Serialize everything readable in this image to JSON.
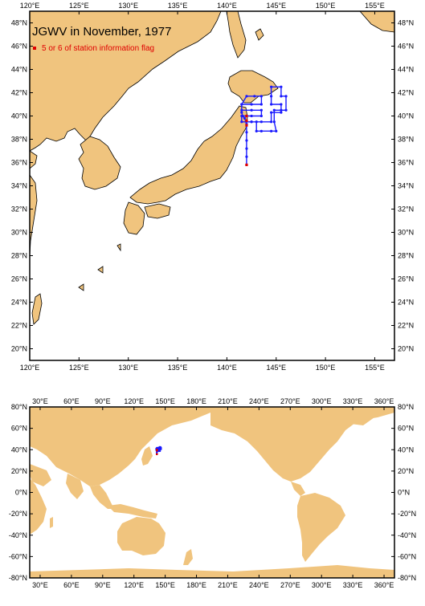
{
  "colors": {
    "land": "#f0c47e",
    "sea": "#ffffff",
    "track": "#1a1aff",
    "flag": "#e00000",
    "frame": "#000000"
  },
  "regional_map": {
    "title": "JGWV in November, 1977",
    "legend_label": "5 or 6 of station information flag",
    "lon_labels": [
      "120°E",
      "125°E",
      "130°E",
      "135°E",
      "140°E",
      "145°E",
      "150°E",
      "155°E"
    ],
    "lat_labels": [
      "20°N",
      "22°N",
      "24°N",
      "26°N",
      "28°N",
      "30°N",
      "32°N",
      "34°N",
      "36°N",
      "38°N",
      "40°N",
      "42°N",
      "44°N",
      "46°N",
      "48°N"
    ],
    "lon_range": [
      120,
      157
    ],
    "lat_range": [
      19,
      49
    ]
  },
  "world_map": {
    "lon_labels": [
      "30°E",
      "60°E",
      "90°E",
      "120°E",
      "150°E",
      "180°E",
      "210°E",
      "240°E",
      "270°E",
      "300°E",
      "330°E",
      "360°E"
    ],
    "lat_labels": [
      "-80°N",
      "-60°N",
      "-40°N",
      "-20°N",
      "0°N",
      "20°N",
      "40°N",
      "60°N",
      "80°N"
    ],
    "lon_range": [
      20,
      370
    ],
    "lat_range": [
      -80,
      80
    ]
  },
  "chart_data": {
    "type": "scatter",
    "series": [
      {
        "name": "",
        "x": [
          142.0,
          142.0,
          142.0,
          142.0,
          142.0,
          142.0,
          141.8,
          141.6,
          141.5,
          141.5,
          142.0,
          142.8,
          143.5,
          143.5,
          142.5,
          141.5,
          141.5,
          142.5,
          143.5,
          143.5,
          142.5,
          141.5,
          141.5,
          142.5,
          143.5,
          144.5,
          144.5,
          145.5,
          145.5,
          144.5,
          144.5,
          144.5,
          145.5,
          145.5,
          146.0,
          146.0,
          145.5,
          144.8,
          144.8,
          145.0,
          144.5,
          143.5,
          143.0,
          143.0,
          142.5
        ],
        "y": [
          35.8,
          36.5,
          37.2,
          37.9,
          38.6,
          39.3,
          39.8,
          40.0,
          40.3,
          41.0,
          41.7,
          41.7,
          41.7,
          41.0,
          41.0,
          41.0,
          40.5,
          40.5,
          40.5,
          40.0,
          40.0,
          40.0,
          39.5,
          39.5,
          39.5,
          39.5,
          40.3,
          40.3,
          41.0,
          41.0,
          41.7,
          42.5,
          42.5,
          41.7,
          41.7,
          40.5,
          40.5,
          40.5,
          39.5,
          38.7,
          38.7,
          38.7,
          38.7,
          39.5,
          39.5
        ]
      },
      {
        "name": "5 or 6 of station information flag",
        "x": [
          142.0,
          142.0,
          142.0,
          142.0
        ],
        "y": [
          35.8,
          39.2,
          39.6,
          40.0
        ]
      }
    ]
  }
}
